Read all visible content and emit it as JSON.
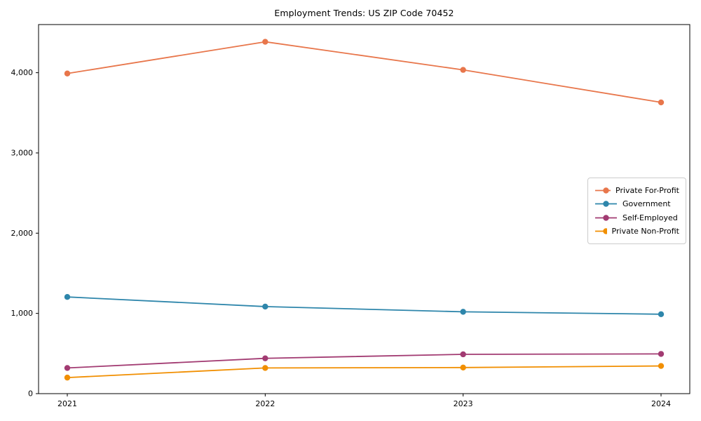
{
  "chart_data": {
    "type": "line",
    "title": "Employment Trends: US ZIP Code 70452",
    "xlabel": "",
    "ylabel": "",
    "grid": false,
    "background": "#ffffff",
    "spine_color": "#000000",
    "tick_label_color": "#000000",
    "legend_position": "center right",
    "legend_border_color": "#cccccc",
    "marker": "circle",
    "x": [
      2021,
      2022,
      2023,
      2024
    ],
    "xtick_labels": [
      "2021",
      "2022",
      "2023",
      "2024"
    ],
    "yticks": [
      0,
      1000,
      2000,
      3000,
      4000
    ],
    "ytick_labels": [
      "0",
      "1,000",
      "2,000",
      "3,000",
      "4,000"
    ],
    "ylim": [
      0,
      4600
    ],
    "series": [
      {
        "name": "Private For-Profit",
        "color": "#E8764B",
        "values": [
          3990,
          4385,
          4035,
          3630
        ]
      },
      {
        "name": "Government",
        "color": "#2E86AB",
        "values": [
          1205,
          1085,
          1020,
          990
        ]
      },
      {
        "name": "Self-Employed",
        "color": "#A23B72",
        "values": [
          320,
          440,
          490,
          495
        ]
      },
      {
        "name": "Private Non-Profit",
        "color": "#F18F01",
        "values": [
          200,
          320,
          325,
          345
        ]
      }
    ]
  }
}
